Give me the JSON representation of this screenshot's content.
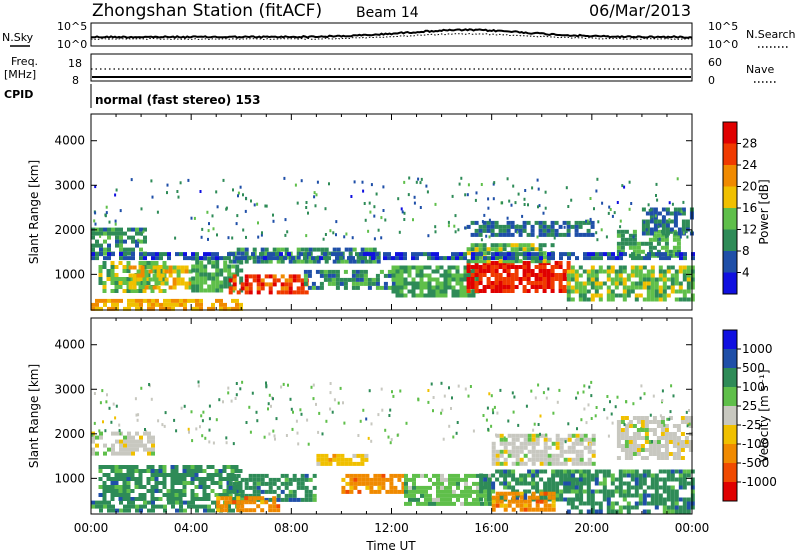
{
  "header": {
    "station": "Zhongshan Station (fitACF)",
    "beam": "Beam 14",
    "date": "06/Mar/2013"
  },
  "panels": {
    "nsky": {
      "left_label": "N.Sky",
      "right_label": "N.Search",
      "tick_top": "10^5",
      "tick_bottom": "10^0",
      "right_tick_top": "10^5",
      "right_tick_bottom": "10^0"
    },
    "freq": {
      "left_label_line1": "Freq.",
      "left_label_line2": "[MHz]",
      "right_label": "Nave",
      "tick_top": "18",
      "tick_bottom": "8",
      "right_tick_top": "60",
      "right_tick_bottom": "0"
    },
    "cpid": {
      "label": "CPID",
      "program": "normal (fast stereo) 153"
    }
  },
  "colors": {
    "power_scale": [
      "#1010e0",
      "#1f4fa8",
      "#2e8b57",
      "#5fbf4a",
      "#f0c000",
      "#f08a00",
      "#f03a00",
      "#e00000"
    ],
    "velocity_scale": [
      "#e00000",
      "#f04a00",
      "#f08a00",
      "#f0c000",
      "#c8c8c0",
      "#5fbf4a",
      "#2e8b57",
      "#1f4fa8",
      "#1010e0"
    ]
  },
  "chart_data": [
    {
      "type": "heatmap",
      "name": "power",
      "ylabel": "Slant Range [km]",
      "yticks": [
        "1000",
        "2000",
        "3000",
        "4000"
      ],
      "ylim": [
        200,
        4600
      ],
      "colorbar_label": "Power [dB]",
      "colorbar_ticks": [
        "4",
        "8",
        "12",
        "16",
        "20",
        "24",
        "28"
      ],
      "colorbar_range": [
        0,
        32
      ],
      "echo_regions": [
        {
          "t0": 0.0,
          "t1": 2.2,
          "r0": 1450,
          "r1": 2050,
          "level": 10
        },
        {
          "t0": 0.3,
          "t1": 3.0,
          "r0": 600,
          "r1": 1300,
          "level": 14
        },
        {
          "t0": 0.0,
          "t1": 6.0,
          "r0": 250,
          "r1": 450,
          "level": 20
        },
        {
          "t0": 1.5,
          "t1": 4.0,
          "r0": 700,
          "r1": 1200,
          "level": 18
        },
        {
          "t0": 4.0,
          "t1": 6.0,
          "r0": 600,
          "r1": 1400,
          "level": 12
        },
        {
          "t0": 5.5,
          "t1": 8.6,
          "r0": 600,
          "r1": 1000,
          "level": 26
        },
        {
          "t0": 5.5,
          "t1": 11.5,
          "r0": 1300,
          "r1": 1600,
          "level": 10
        },
        {
          "t0": 8.5,
          "t1": 12.2,
          "r0": 700,
          "r1": 1100,
          "level": 10
        },
        {
          "t0": 12.0,
          "t1": 15.5,
          "r0": 500,
          "r1": 1200,
          "level": 12
        },
        {
          "t0": 15.0,
          "t1": 19.0,
          "r0": 600,
          "r1": 1300,
          "level": 28
        },
        {
          "t0": 15.0,
          "t1": 18.5,
          "r0": 1300,
          "r1": 1700,
          "level": 14
        },
        {
          "t0": 15.0,
          "t1": 20.0,
          "r0": 1900,
          "r1": 2200,
          "level": 8
        },
        {
          "t0": 19.0,
          "t1": 24.0,
          "r0": 400,
          "r1": 1200,
          "level": 14
        },
        {
          "t0": 21.0,
          "t1": 23.5,
          "r0": 1400,
          "r1": 2000,
          "level": 12
        },
        {
          "t0": 22.0,
          "t1": 24.0,
          "r0": 1900,
          "r1": 2500,
          "level": 8
        },
        {
          "t0": 0.0,
          "t1": 24.0,
          "r0": 1400,
          "r1": 1500,
          "level": 6
        }
      ]
    },
    {
      "type": "heatmap",
      "name": "velocity",
      "xlabel": "Time UT",
      "xticks": [
        "00:00",
        "04:00",
        "08:00",
        "12:00",
        "16:00",
        "20:00",
        "00:00"
      ],
      "xlim": [
        0,
        24
      ],
      "ylabel": "Slant Range [km]",
      "yticks": [
        "1000",
        "2000",
        "3000",
        "4000"
      ],
      "ylim": [
        200,
        4600
      ],
      "colorbar_label": "Velocity [m s⁻¹]",
      "colorbar_ticks": [
        "-1000",
        "-500",
        "-100",
        "-25",
        "25",
        "100",
        "500",
        "1000"
      ],
      "echo_regions": [
        {
          "t0": 0.0,
          "t1": 2.5,
          "r0": 1550,
          "r1": 2050,
          "class": 4
        },
        {
          "t0": 0.3,
          "t1": 6.0,
          "r0": 500,
          "r1": 1300,
          "class": 6
        },
        {
          "t0": 0.0,
          "t1": 6.0,
          "r0": 250,
          "r1": 500,
          "class": 6
        },
        {
          "t0": 5.5,
          "t1": 9.0,
          "r0": 500,
          "r1": 1100,
          "class": 6
        },
        {
          "t0": 5.0,
          "t1": 7.5,
          "r0": 250,
          "r1": 600,
          "class": 2
        },
        {
          "t0": 9.0,
          "t1": 11.0,
          "r0": 1300,
          "r1": 1550,
          "class": 3
        },
        {
          "t0": 10.0,
          "t1": 12.5,
          "r0": 700,
          "r1": 1100,
          "class": 2
        },
        {
          "t0": 12.5,
          "t1": 16.0,
          "r0": 400,
          "r1": 1100,
          "class": 5
        },
        {
          "t0": 15.5,
          "t1": 19.5,
          "r0": 500,
          "r1": 1200,
          "class": 6
        },
        {
          "t0": 16.0,
          "t1": 18.5,
          "r0": 300,
          "r1": 700,
          "class": 2
        },
        {
          "t0": 19.0,
          "t1": 24.0,
          "r0": 300,
          "r1": 1200,
          "class": 6
        },
        {
          "t0": 21.0,
          "t1": 24.0,
          "r0": 1500,
          "r1": 2400,
          "class": 4
        },
        {
          "t0": 16.0,
          "t1": 20.0,
          "r0": 1300,
          "r1": 2000,
          "class": 4
        }
      ]
    }
  ]
}
